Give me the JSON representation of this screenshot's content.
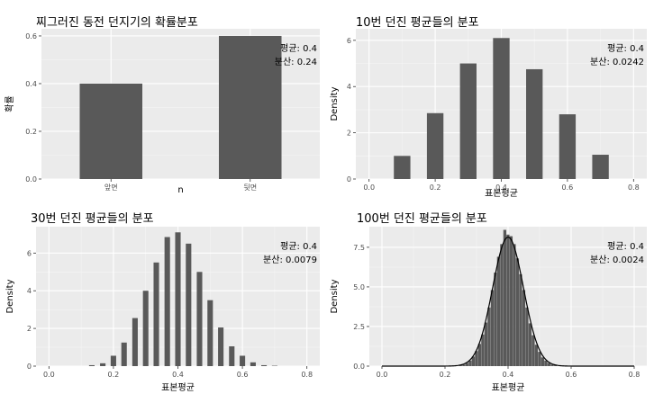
{
  "chart_data": [
    {
      "type": "bar",
      "title": "찌그러진 동전 던지기의 확률분포",
      "xlabel": "n",
      "ylabel": "확률",
      "categories": [
        "앞면",
        "뒷면"
      ],
      "values": [
        0.4,
        0.6
      ],
      "ylim": [
        0,
        0.63
      ],
      "yticks": [
        0.0,
        0.2,
        0.4,
        0.6
      ],
      "ytick_labels": [
        "0.0",
        "0.2",
        "0.4",
        "0.6"
      ],
      "annotations": [
        "평균: 0.4",
        "분산: 0.24"
      ],
      "grid": true,
      "color": "#595959"
    },
    {
      "type": "bar",
      "title": "10번 던진 평균들의 분포",
      "xlabel": "표본평균",
      "ylabel": "Density",
      "x": [
        0.1,
        0.2,
        0.3,
        0.4,
        0.5,
        0.6,
        0.7
      ],
      "values": [
        1.0,
        2.85,
        5.0,
        6.1,
        4.75,
        2.8,
        1.05
      ],
      "xlim": [
        -0.04,
        0.84
      ],
      "ylim": [
        0,
        6.5
      ],
      "xticks": [
        0.0,
        0.2,
        0.4,
        0.6,
        0.8
      ],
      "xtick_labels": [
        "0.0",
        "0.2",
        "0.4",
        "0.6",
        "0.8"
      ],
      "yticks": [
        0,
        2,
        4,
        6
      ],
      "ytick_labels": [
        "0",
        "2",
        "4",
        "6"
      ],
      "annotations": [
        "평균: 0.4",
        "분산: 0.0242"
      ],
      "grid": true,
      "color": "#595959"
    },
    {
      "type": "bar",
      "title": "30번 던진 평균들의 분포",
      "xlabel": "표본평균",
      "ylabel": "Density",
      "x": [
        0.133,
        0.167,
        0.2,
        0.233,
        0.267,
        0.3,
        0.333,
        0.367,
        0.4,
        0.433,
        0.467,
        0.5,
        0.533,
        0.567,
        0.6,
        0.633,
        0.667,
        0.7
      ],
      "values": [
        0.05,
        0.15,
        0.55,
        1.25,
        2.55,
        4.0,
        5.5,
        6.85,
        7.1,
        6.5,
        5.0,
        3.5,
        2.05,
        1.05,
        0.55,
        0.2,
        0.05,
        0.02
      ],
      "xlim": [
        -0.04,
        0.84
      ],
      "ylim": [
        0,
        7.4
      ],
      "xticks": [
        0.0,
        0.2,
        0.4,
        0.6,
        0.8
      ],
      "xtick_labels": [
        "0.0",
        "0.2",
        "0.4",
        "0.6",
        "0.8"
      ],
      "yticks": [
        0,
        2,
        4,
        6
      ],
      "ytick_labels": [
        "0",
        "2",
        "4",
        "6"
      ],
      "annotations": [
        "평균: 0.4",
        "분산: 0.0079"
      ],
      "grid": true,
      "color": "#595959"
    },
    {
      "type": "bar",
      "title": "100번 던진 평균들의 분포",
      "xlabel": "표본평균",
      "ylabel": "Density",
      "x": [
        0.25,
        0.26,
        0.27,
        0.28,
        0.29,
        0.3,
        0.31,
        0.32,
        0.33,
        0.34,
        0.35,
        0.36,
        0.37,
        0.38,
        0.39,
        0.4,
        0.41,
        0.42,
        0.43,
        0.44,
        0.45,
        0.46,
        0.47,
        0.48,
        0.49,
        0.5,
        0.51,
        0.52,
        0.53,
        0.54,
        0.55
      ],
      "values": [
        0.05,
        0.1,
        0.2,
        0.35,
        0.6,
        0.95,
        1.4,
        2.0,
        2.75,
        3.7,
        4.8,
        5.9,
        6.9,
        7.7,
        8.6,
        8.3,
        8.2,
        7.7,
        6.8,
        5.8,
        4.8,
        3.7,
        2.7,
        1.95,
        1.35,
        0.9,
        0.55,
        0.35,
        0.2,
        0.1,
        0.05
      ],
      "density_curve": {
        "mean": 0.4,
        "sd": 0.049
      },
      "xlim": [
        -0.04,
        0.84
      ],
      "ylim": [
        0,
        8.8
      ],
      "xticks": [
        0.0,
        0.2,
        0.4,
        0.6,
        0.8
      ],
      "xtick_labels": [
        "0.0",
        "0.2",
        "0.4",
        "0.6",
        "0.8"
      ],
      "yticks": [
        0.0,
        2.5,
        5.0,
        7.5
      ],
      "ytick_labels": [
        "0.0",
        "2.5",
        "5.0",
        "7.5"
      ],
      "annotations": [
        "평균: 0.4",
        "분산: 0.0024"
      ],
      "grid": true,
      "color": "#595959"
    }
  ]
}
